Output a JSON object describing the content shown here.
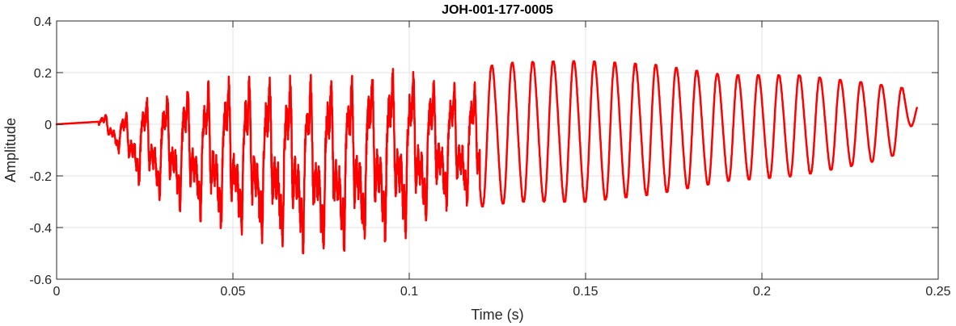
{
  "chart_data": {
    "type": "line",
    "title": "JOH-001-177-0005",
    "xlabel": "Time (s)",
    "ylabel": "Amplitude",
    "xlim": [
      0,
      0.25
    ],
    "ylim": [
      -0.6,
      0.4
    ],
    "grid": true,
    "x_ticks": [
      0,
      0.05,
      0.1,
      0.15,
      0.2,
      0.25
    ],
    "x_tick_labels": [
      "0",
      "0.05",
      "0.1",
      "0.15",
      "0.2",
      "0.25"
    ],
    "y_ticks": [
      -0.6,
      -0.4,
      -0.2,
      0,
      0.2,
      0.4
    ],
    "y_tick_labels": [
      "-0.6",
      "-0.4",
      "-0.2",
      "0",
      "0.2",
      "0.4"
    ],
    "series": [
      {
        "color": "#ff0000",
        "line_width": 2.5,
        "x_range": [
          0,
          0.244
        ],
        "fundamental_hz": 172,
        "envelope": [
          {
            "t": 0.0,
            "pos": 0.005,
            "neg": -0.005
          },
          {
            "t": 0.012,
            "pos": 0.04,
            "neg": -0.02
          },
          {
            "t": 0.018,
            "pos": 0.07,
            "neg": -0.12
          },
          {
            "t": 0.02,
            "pos": 0.08,
            "neg": -0.18
          },
          {
            "t": 0.025,
            "pos": 0.16,
            "neg": -0.27
          },
          {
            "t": 0.04,
            "pos": 0.22,
            "neg": -0.37
          },
          {
            "t": 0.05,
            "pos": 0.27,
            "neg": -0.44
          },
          {
            "t": 0.07,
            "pos": 0.28,
            "neg": -0.5
          },
          {
            "t": 0.08,
            "pos": 0.28,
            "neg": -0.5
          },
          {
            "t": 0.09,
            "pos": 0.3,
            "neg": -0.46
          },
          {
            "t": 0.1,
            "pos": 0.3,
            "neg": -0.44
          },
          {
            "t": 0.11,
            "pos": 0.24,
            "neg": -0.34
          },
          {
            "t": 0.12,
            "pos": 0.22,
            "neg": -0.32
          },
          {
            "t": 0.13,
            "pos": 0.24,
            "neg": -0.3
          },
          {
            "t": 0.15,
            "pos": 0.245,
            "neg": -0.3
          },
          {
            "t": 0.17,
            "pos": 0.23,
            "neg": -0.27
          },
          {
            "t": 0.19,
            "pos": 0.19,
            "neg": -0.22
          },
          {
            "t": 0.21,
            "pos": 0.19,
            "neg": -0.2
          },
          {
            "t": 0.23,
            "pos": 0.16,
            "neg": -0.15
          },
          {
            "t": 0.24,
            "pos": 0.14,
            "neg": -0.11
          },
          {
            "t": 0.244,
            "pos": 0.09,
            "neg": 0.05
          }
        ]
      }
    ]
  }
}
